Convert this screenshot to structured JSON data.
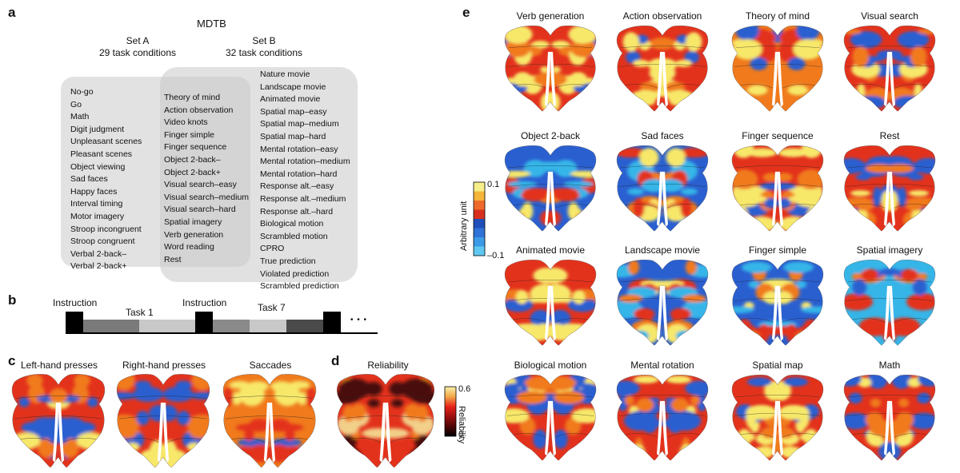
{
  "panel_labels": {
    "a": "a",
    "b": "b",
    "c": "c",
    "d": "d",
    "e": "e"
  },
  "panel_a": {
    "title": "MDTB",
    "set_a": {
      "name": "Set A",
      "subtitle": "29 task conditions"
    },
    "set_b": {
      "name": "Set B",
      "subtitle": "32 task conditions"
    },
    "set_a_only": [
      "No-go",
      "Go",
      "Math",
      "Digit judgment",
      "Unpleasant scenes",
      "Pleasant scenes",
      "Object viewing",
      "Sad faces",
      "Happy faces",
      "Interval timing",
      "Motor imagery",
      "Stroop incongruent",
      "Stroop congruent",
      "Verbal 2-back–",
      "Verbal 2-back+"
    ],
    "shared": [
      "Theory of mind",
      "Action observation",
      "Video knots",
      "Finger simple",
      "Finger sequence",
      "Object 2-back–",
      "Object 2-back+",
      "Visual search–easy",
      "Visual search–medium",
      "Visual search–hard",
      "Spatial imagery",
      "Verb generation",
      "Word reading",
      "Rest"
    ],
    "set_b_only": [
      "Nature movie",
      "Landscape movie",
      "Animated movie",
      "Spatial map–easy",
      "Spatial map–medium",
      "Spatial map–hard",
      "Mental rotation–easy",
      "Mental rotation–medium",
      "Mental rotation–hard",
      "Response alt.–easy",
      "Response alt.–medium",
      "Response alt.–hard",
      "Biological motion",
      "Scrambled motion",
      "CPRO",
      "True prediction",
      "Violated prediction",
      "Scrambled prediction"
    ]
  },
  "panel_b": {
    "labels": {
      "instruction_1": "Instruction",
      "task_1": "Task 1",
      "instruction_2": "Instruction",
      "task_7": "Task 7",
      "ellipsis": "• • •"
    },
    "colors": {
      "instruction": "#000000",
      "dark": "#6f6f6f",
      "light": "#c8c8c8",
      "mid": "#9a9a9a",
      "darker": "#4a4a4a"
    }
  },
  "panel_c": {
    "maps": [
      "Left-hand presses",
      "Right-hand presses",
      "Saccades"
    ]
  },
  "panel_d": {
    "title": "Reliability",
    "colorbar": {
      "label": "Reliability",
      "max": "0.6",
      "min": "0"
    }
  },
  "panel_e": {
    "maps": [
      "Verb generation",
      "Action observation",
      "Theory of mind",
      "Visual search",
      "Object 2-back",
      "Sad faces",
      "Finger sequence",
      "Rest",
      "Animated movie",
      "Landscape movie",
      "Finger simple",
      "Spatial imagery",
      "Biological motion",
      "Mental rotation",
      "Spatial map",
      "Math"
    ],
    "colorbar": {
      "label": "Arbitrary unit",
      "max": "0.1",
      "min": "–0.1"
    }
  },
  "palette": {
    "blue": "#2a5fd0",
    "cyan": "#35b5e8",
    "red": "#e3321c",
    "orange": "#f07a1c",
    "yellow": "#f7e86a",
    "darkred": "#4a0b08"
  }
}
